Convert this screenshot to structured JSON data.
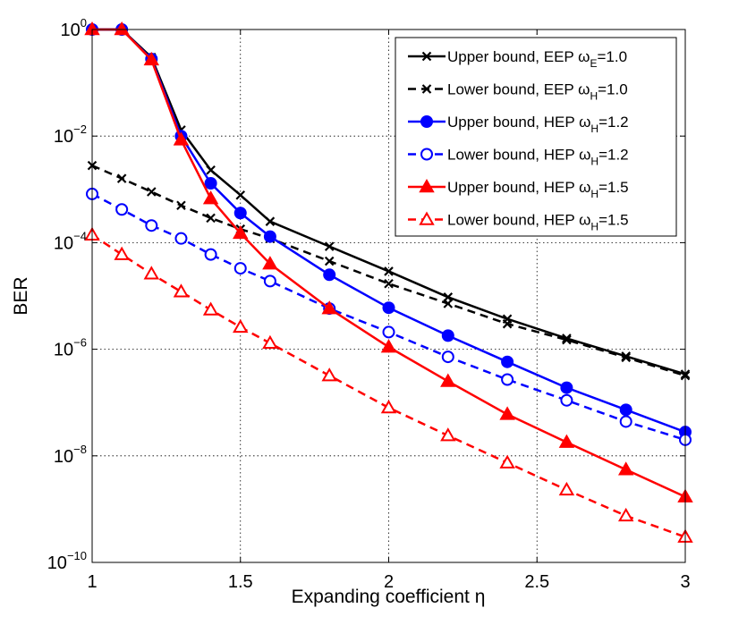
{
  "chart_data": {
    "type": "line",
    "xlabel": "Expanding coefficient η",
    "ylabel": "BER",
    "xlim": [
      1,
      3
    ],
    "ylim": [
      1e-10,
      1
    ],
    "yscale": "log",
    "grid": true,
    "legend_position": "top-right",
    "x_ticks": [
      {
        "value": 1,
        "label": "1"
      },
      {
        "value": 1.5,
        "label": "1.5"
      },
      {
        "value": 2,
        "label": "2"
      },
      {
        "value": 2.5,
        "label": "2.5"
      },
      {
        "value": 3,
        "label": "3"
      }
    ],
    "y_ticks": [
      {
        "value": 1,
        "base": "10",
        "exp": "0"
      },
      {
        "value": 0.01,
        "base": "10",
        "exp": "−2"
      },
      {
        "value": 0.0001,
        "base": "10",
        "exp": "−4"
      },
      {
        "value": 1e-06,
        "base": "10",
        "exp": "−6"
      },
      {
        "value": 1e-08,
        "base": "10",
        "exp": "−8"
      },
      {
        "value": 1e-10,
        "base": "10",
        "exp": "−10"
      }
    ],
    "series": [
      {
        "name": "Upper bound, EEP ωE=1.0",
        "legend_main": "Upper bound, EEP ω",
        "legend_sub": "E",
        "legend_tail": "=1.0",
        "color": "#000000",
        "dash": "solid",
        "marker": "x",
        "fill": false,
        "x": [
          1,
          1.1,
          1.2,
          1.3,
          1.4,
          1.5,
          1.6,
          1.8,
          2.0,
          2.2,
          2.4,
          2.6,
          2.8,
          3.0
        ],
        "y": [
          1.0,
          1.0,
          0.3,
          0.013,
          0.0023,
          0.00078,
          0.00025,
          8.5e-05,
          2.9e-05,
          9.5e-06,
          3.7e-06,
          1.6e-06,
          7.4e-07,
          3.4e-07
        ]
      },
      {
        "name": "Lower bound, EEP ωH=1.0",
        "legend_main": "Lower bound, EEP ω",
        "legend_sub": "H",
        "legend_tail": "=1.0",
        "color": "#000000",
        "dash": "dashed",
        "marker": "x",
        "fill": false,
        "x": [
          1,
          1.1,
          1.2,
          1.3,
          1.4,
          1.5,
          1.6,
          1.8,
          2.0,
          2.2,
          2.4,
          2.6,
          2.8,
          3.0
        ],
        "y": [
          0.0028,
          0.0016,
          0.0009,
          0.0005,
          0.00029,
          0.00018,
          0.00012,
          4.5e-05,
          1.7e-05,
          7.2e-06,
          3e-06,
          1.5e-06,
          7e-07,
          3.2e-07
        ]
      },
      {
        "name": "Upper bound, HEP ωH=1.2",
        "legend_main": "Upper bound, HEP ω",
        "legend_sub": "H",
        "legend_tail": "=1.2",
        "color": "#0000ff",
        "dash": "solid",
        "marker": "circle",
        "fill": true,
        "x": [
          1,
          1.1,
          1.2,
          1.3,
          1.4,
          1.5,
          1.6,
          1.8,
          2.0,
          2.2,
          2.4,
          2.6,
          2.8,
          3.0
        ],
        "y": [
          1.0,
          1.0,
          0.28,
          0.01,
          0.0013,
          0.00036,
          0.00013,
          2.5e-05,
          6e-06,
          1.8e-06,
          5.8e-07,
          1.9e-07,
          7.3e-08,
          2.8e-08
        ]
      },
      {
        "name": "Lower bound, HEP ωH=1.2",
        "legend_main": "Lower bound, HEP ω",
        "legend_sub": "H",
        "legend_tail": "=1.2",
        "color": "#0000ff",
        "dash": "dashed",
        "marker": "circle",
        "fill": false,
        "x": [
          1,
          1.1,
          1.2,
          1.3,
          1.4,
          1.5,
          1.6,
          1.8,
          2.0,
          2.2,
          2.4,
          2.6,
          2.8,
          3.0
        ],
        "y": [
          0.00082,
          0.00042,
          0.00021,
          0.00012,
          6e-05,
          3.3e-05,
          1.9e-05,
          5.8e-06,
          2.1e-06,
          7.2e-07,
          2.7e-07,
          1.1e-07,
          4.4e-08,
          2e-08
        ]
      },
      {
        "name": "Upper bound, HEP ωH=1.5",
        "legend_main": "Upper bound, HEP ω",
        "legend_sub": "H",
        "legend_tail": "=1.5",
        "color": "#ff0000",
        "dash": "solid",
        "marker": "triangle",
        "fill": true,
        "x": [
          1,
          1.1,
          1.2,
          1.3,
          1.4,
          1.5,
          1.6,
          1.8,
          2.0,
          2.2,
          2.4,
          2.6,
          2.8,
          3.0
        ],
        "y": [
          1.0,
          1.0,
          0.27,
          0.0085,
          0.00067,
          0.00015,
          4e-05,
          5.8e-06,
          1.1e-06,
          2.5e-07,
          6e-08,
          1.8e-08,
          5.5e-09,
          1.7e-09
        ]
      },
      {
        "name": "Lower bound, HEP ωH=1.5",
        "legend_main": "Lower bound, HEP ω",
        "legend_sub": "H",
        "legend_tail": "=1.5",
        "color": "#ff0000",
        "dash": "dashed",
        "marker": "triangle",
        "fill": false,
        "x": [
          1,
          1.1,
          1.2,
          1.3,
          1.4,
          1.5,
          1.6,
          1.8,
          2.0,
          2.2,
          2.4,
          2.6,
          2.8,
          3.0
        ],
        "y": [
          0.00014,
          6e-05,
          2.6e-05,
          1.2e-05,
          5.5e-06,
          2.6e-06,
          1.3e-06,
          3.2e-07,
          8e-08,
          2.4e-08,
          7.4e-09,
          2.3e-09,
          7.5e-10,
          3e-10
        ]
      }
    ]
  }
}
